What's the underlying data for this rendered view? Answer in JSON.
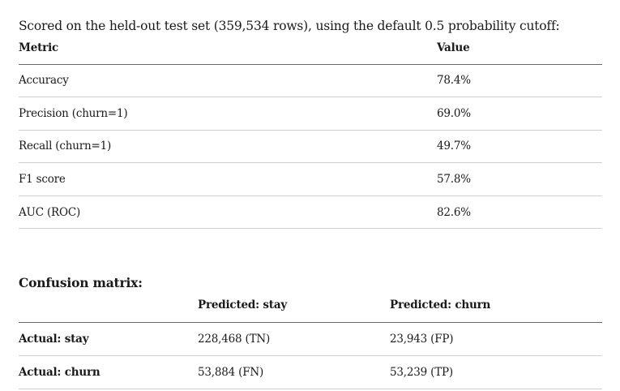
{
  "intro": "Scored on the held-out test set (359,534 rows), using the default 0.5 probability cutoff:",
  "metrics_table": {
    "headers": [
      "Metric",
      "Value"
    ],
    "rows": [
      {
        "metric": "Accuracy",
        "value": "78.4%"
      },
      {
        "metric": "Precision (churn=1)",
        "value": "69.0%"
      },
      {
        "metric": "Recall (churn=1)",
        "value": "49.7%"
      },
      {
        "metric": "F1 score",
        "value": "57.8%"
      },
      {
        "metric": "AUC (ROC)",
        "value": "82.6%"
      }
    ]
  },
  "confusion": {
    "heading": "Confusion matrix:",
    "headers": [
      "",
      "Predicted: stay",
      "Predicted: churn"
    ],
    "rows": [
      {
        "label": "Actual: stay",
        "stay": "228,468 (TN)",
        "churn": "23,943 (FP)"
      },
      {
        "label": "Actual: churn",
        "stay": "53,884 (FN)",
        "churn": "53,239 (TP)"
      }
    ]
  }
}
